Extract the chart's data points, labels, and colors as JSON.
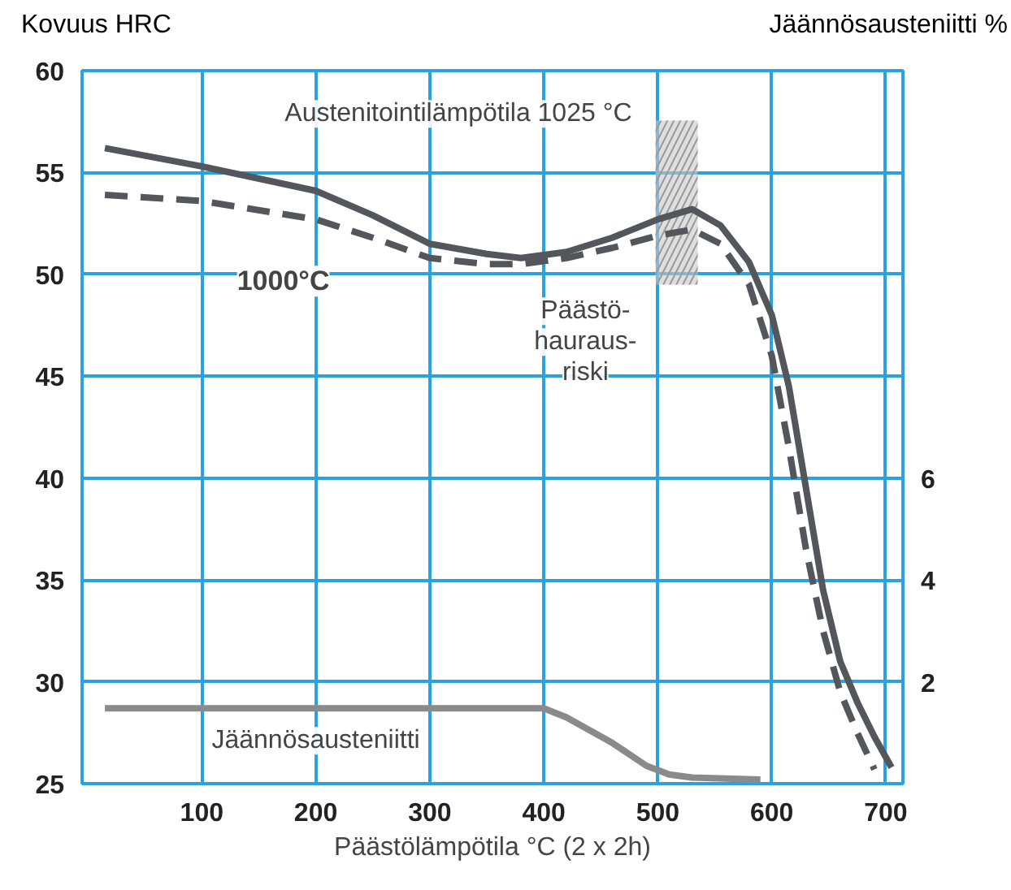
{
  "chart_data": {
    "type": "line",
    "xlabel": "Päästölämpötila °C (2 x 2h)",
    "ylabel": "Kovuus HRC",
    "y2label": "Jäännösausteniitti %",
    "xlim": [
      -5,
      715
    ],
    "xticks": [
      100,
      200,
      300,
      400,
      500,
      600,
      700
    ],
    "ylim": [
      25,
      60
    ],
    "yticks": [
      25,
      30,
      35,
      40,
      45,
      50,
      55,
      60
    ],
    "y2lim": [
      0,
      14
    ],
    "y2ticks": [
      2,
      4,
      6
    ],
    "grid": true,
    "marker": "none",
    "series": [
      {
        "color": "#53575c",
        "line_style": "solid",
        "x": [
          15,
          100,
          200,
          250,
          300,
          350,
          380,
          420,
          460,
          500,
          530,
          555,
          580,
          600,
          615,
          630,
          645,
          660,
          675,
          690,
          705
        ],
        "values": [
          56.2,
          55.3,
          54.1,
          52.9,
          51.5,
          51.0,
          50.8,
          51.1,
          51.8,
          52.7,
          53.2,
          52.4,
          50.6,
          48.0,
          44.5,
          39.5,
          34.5,
          31.0,
          29.0,
          27.3,
          25.8
        ]
      },
      {
        "name": "1000°C",
        "color": "#53575c",
        "line_style": "dashed",
        "x": [
          15,
          100,
          200,
          250,
          300,
          350,
          380,
          420,
          460,
          500,
          530,
          555,
          580,
          600,
          615,
          630,
          645,
          660,
          675,
          690
        ],
        "values": [
          53.9,
          53.6,
          52.7,
          51.8,
          50.8,
          50.5,
          50.5,
          50.8,
          51.3,
          51.9,
          52.2,
          51.5,
          49.5,
          46.0,
          41.5,
          36.5,
          32.5,
          29.5,
          27.5,
          25.7
        ]
      },
      {
        "name": "Jäännösausteniitti",
        "color": "#8a8a8a",
        "line_style": "solid",
        "axis": "y2",
        "x": [
          15,
          100,
          200,
          300,
          400,
          420,
          460,
          490,
          510,
          530,
          560,
          590
        ],
        "values": [
          1.48,
          1.48,
          1.48,
          1.48,
          1.48,
          1.3,
          0.8,
          0.35,
          0.18,
          0.12,
          0.1,
          0.08
        ]
      }
    ],
    "bands": [
      {
        "axis": "x",
        "from": 498,
        "to": 535,
        "label": "Päästö-\nhauraus-\nriski",
        "color": "#c8c8c8"
      }
    ],
    "annotations": [
      "Austenitointilämpötila 1025 °C"
    ]
  }
}
